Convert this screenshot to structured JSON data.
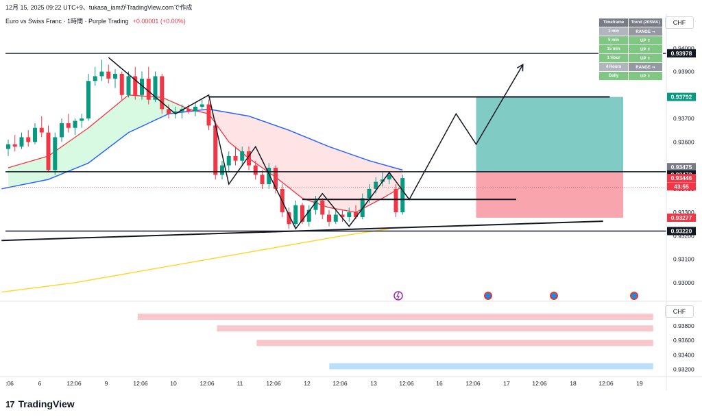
{
  "header": {
    "caption": "12月 15, 2025 09:22 UTC+9、tukasa_iamがTradingView.comで作成",
    "symbol_line": "Euro vs Swiss Franc · 1時間 · Purple Trading",
    "change": "+0.00001 (+0.00%)"
  },
  "axis": {
    "currency": "CHF",
    "currency_lower": "CHF"
  },
  "trend_table": {
    "header": [
      "Timeframe",
      "Trend (20SMA)"
    ],
    "rows": [
      {
        "tf": "1 min",
        "trend": "RANGE ⇒",
        "state": "range"
      },
      {
        "tf": "5 min",
        "trend": "UP ⇑",
        "state": "up"
      },
      {
        "tf": "15 min",
        "trend": "UP ⇑",
        "state": "up"
      },
      {
        "tf": "1 Hour",
        "trend": "UP ⇑",
        "state": "up"
      },
      {
        "tf": "4 Hours",
        "trend": "RANGE ⇒",
        "state": "range"
      },
      {
        "tf": "Daily",
        "trend": "UP ⇑",
        "state": "up"
      }
    ]
  },
  "footer": {
    "brand": "TradingView",
    "logo": "17"
  },
  "chart_data": {
    "type": "line",
    "main_axis": {
      "ylim": [
        0.9295,
        0.9403
      ],
      "ticks": [
        0.94,
        0.939,
        0.938,
        0.937,
        0.936,
        0.935,
        0.934,
        0.933,
        0.932,
        0.931,
        0.93
      ]
    },
    "price_labels": [
      {
        "value": "0.93978",
        "y": 0.93978,
        "style": "dark"
      },
      {
        "value": "0.93792",
        "y": 0.93792,
        "style": "green"
      },
      {
        "value": "0.93475",
        "y": 0.93475,
        "style": "gray"
      },
      {
        "value": "0.93473",
        "y": 0.93473,
        "style": "dark"
      },
      {
        "value": "0.93446",
        "y": 0.93446,
        "style": "red"
      },
      {
        "value": "43:55",
        "y": 0.93422,
        "style": "red"
      },
      {
        "value": "0.93277",
        "y": 0.93277,
        "style": "red"
      },
      {
        "value": "0.93220",
        "y": 0.9322,
        "style": "dark"
      }
    ],
    "x_ticks": [
      ":06",
      "6",
      "12:06",
      "9",
      "12:06",
      "10",
      "12:06",
      "11",
      "12:06",
      "12",
      "12:06",
      "13",
      "12:06",
      "16",
      "12:06",
      "17",
      "12:06",
      "18",
      "12:06",
      "19"
    ],
    "candles": [
      {
        "x": 0,
        "o": 0.9357,
        "h": 0.9361,
        "l": 0.9354,
        "c": 0.9359
      },
      {
        "x": 1,
        "o": 0.9359,
        "h": 0.9363,
        "l": 0.9356,
        "c": 0.9358
      },
      {
        "x": 2,
        "o": 0.9358,
        "h": 0.9364,
        "l": 0.9357,
        "c": 0.9362
      },
      {
        "x": 3,
        "o": 0.9362,
        "h": 0.9365,
        "l": 0.9358,
        "c": 0.936
      },
      {
        "x": 4,
        "o": 0.936,
        "h": 0.9368,
        "l": 0.9359,
        "c": 0.9366
      },
      {
        "x": 5,
        "o": 0.9366,
        "h": 0.9371,
        "l": 0.9362,
        "c": 0.9364
      },
      {
        "x": 6,
        "o": 0.9364,
        "h": 0.9367,
        "l": 0.9347,
        "c": 0.9348
      },
      {
        "x": 7,
        "o": 0.9348,
        "h": 0.9364,
        "l": 0.9346,
        "c": 0.9362
      },
      {
        "x": 8,
        "o": 0.9362,
        "h": 0.937,
        "l": 0.936,
        "c": 0.9368
      },
      {
        "x": 9,
        "o": 0.9368,
        "h": 0.9372,
        "l": 0.9364,
        "c": 0.9366
      },
      {
        "x": 10,
        "o": 0.9366,
        "h": 0.937,
        "l": 0.9363,
        "c": 0.9369
      },
      {
        "x": 11,
        "o": 0.9369,
        "h": 0.9372,
        "l": 0.9366,
        "c": 0.937
      },
      {
        "x": 12,
        "o": 0.937,
        "h": 0.9389,
        "l": 0.9369,
        "c": 0.9386
      },
      {
        "x": 13,
        "o": 0.9386,
        "h": 0.9392,
        "l": 0.9384,
        "c": 0.9388
      },
      {
        "x": 14,
        "o": 0.9388,
        "h": 0.9395,
        "l": 0.9386,
        "c": 0.939
      },
      {
        "x": 15,
        "o": 0.939,
        "h": 0.9393,
        "l": 0.9385,
        "c": 0.9387
      },
      {
        "x": 16,
        "o": 0.9387,
        "h": 0.9391,
        "l": 0.9383,
        "c": 0.9389
      },
      {
        "x": 17,
        "o": 0.9389,
        "h": 0.939,
        "l": 0.9378,
        "c": 0.938
      },
      {
        "x": 18,
        "o": 0.938,
        "h": 0.939,
        "l": 0.9379,
        "c": 0.9388
      },
      {
        "x": 19,
        "o": 0.9388,
        "h": 0.9392,
        "l": 0.9378,
        "c": 0.938
      },
      {
        "x": 20,
        "o": 0.938,
        "h": 0.939,
        "l": 0.9378,
        "c": 0.9387
      },
      {
        "x": 21,
        "o": 0.9387,
        "h": 0.9392,
        "l": 0.9376,
        "c": 0.9378
      },
      {
        "x": 22,
        "o": 0.9378,
        "h": 0.939,
        "l": 0.9377,
        "c": 0.9388
      },
      {
        "x": 23,
        "o": 0.9388,
        "h": 0.9389,
        "l": 0.9372,
        "c": 0.9374
      },
      {
        "x": 24,
        "o": 0.9374,
        "h": 0.9376,
        "l": 0.937,
        "c": 0.9372
      },
      {
        "x": 25,
        "o": 0.9372,
        "h": 0.9375,
        "l": 0.937,
        "c": 0.9373
      },
      {
        "x": 26,
        "o": 0.9373,
        "h": 0.9376,
        "l": 0.937,
        "c": 0.9374
      },
      {
        "x": 27,
        "o": 0.9374,
        "h": 0.9376,
        "l": 0.9372,
        "c": 0.9373
      },
      {
        "x": 28,
        "o": 0.9373,
        "h": 0.9377,
        "l": 0.9371,
        "c": 0.9375
      },
      {
        "x": 29,
        "o": 0.9375,
        "h": 0.9378,
        "l": 0.9374,
        "c": 0.9376
      },
      {
        "x": 30,
        "o": 0.9376,
        "h": 0.9378,
        "l": 0.9365,
        "c": 0.9367
      },
      {
        "x": 31,
        "o": 0.9367,
        "h": 0.9369,
        "l": 0.9344,
        "c": 0.9346
      },
      {
        "x": 32,
        "o": 0.9346,
        "h": 0.9352,
        "l": 0.9344,
        "c": 0.935
      },
      {
        "x": 33,
        "o": 0.935,
        "h": 0.9356,
        "l": 0.9347,
        "c": 0.9354
      },
      {
        "x": 34,
        "o": 0.9354,
        "h": 0.9358,
        "l": 0.935,
        "c": 0.9352
      },
      {
        "x": 35,
        "o": 0.9352,
        "h": 0.9358,
        "l": 0.935,
        "c": 0.9356
      },
      {
        "x": 36,
        "o": 0.9356,
        "h": 0.9358,
        "l": 0.9348,
        "c": 0.935
      },
      {
        "x": 37,
        "o": 0.935,
        "h": 0.9352,
        "l": 0.9344,
        "c": 0.9346
      },
      {
        "x": 38,
        "o": 0.9346,
        "h": 0.9348,
        "l": 0.934,
        "c": 0.9342
      },
      {
        "x": 39,
        "o": 0.9342,
        "h": 0.9351,
        "l": 0.934,
        "c": 0.9349
      },
      {
        "x": 40,
        "o": 0.9349,
        "h": 0.935,
        "l": 0.9338,
        "c": 0.934
      },
      {
        "x": 41,
        "o": 0.934,
        "h": 0.9342,
        "l": 0.9328,
        "c": 0.933
      },
      {
        "x": 42,
        "o": 0.933,
        "h": 0.9332,
        "l": 0.9323,
        "c": 0.9325
      },
      {
        "x": 43,
        "o": 0.9325,
        "h": 0.9335,
        "l": 0.9324,
        "c": 0.9333
      },
      {
        "x": 44,
        "o": 0.9333,
        "h": 0.9334,
        "l": 0.9325,
        "c": 0.9326
      },
      {
        "x": 45,
        "o": 0.9326,
        "h": 0.9333,
        "l": 0.9324,
        "c": 0.9331
      },
      {
        "x": 46,
        "o": 0.9331,
        "h": 0.9337,
        "l": 0.9329,
        "c": 0.9335
      },
      {
        "x": 47,
        "o": 0.9335,
        "h": 0.9336,
        "l": 0.9327,
        "c": 0.9329
      },
      {
        "x": 48,
        "o": 0.9329,
        "h": 0.9331,
        "l": 0.9324,
        "c": 0.9326
      },
      {
        "x": 49,
        "o": 0.9326,
        "h": 0.9331,
        "l": 0.9325,
        "c": 0.9329
      },
      {
        "x": 50,
        "o": 0.9329,
        "h": 0.9331,
        "l": 0.9326,
        "c": 0.9328
      },
      {
        "x": 51,
        "o": 0.9328,
        "h": 0.9332,
        "l": 0.9326,
        "c": 0.933
      },
      {
        "x": 52,
        "o": 0.933,
        "h": 0.9333,
        "l": 0.9327,
        "c": 0.9328
      },
      {
        "x": 53,
        "o": 0.9328,
        "h": 0.9338,
        "l": 0.9327,
        "c": 0.9336
      },
      {
        "x": 54,
        "o": 0.9336,
        "h": 0.9342,
        "l": 0.9334,
        "c": 0.934
      },
      {
        "x": 55,
        "o": 0.934,
        "h": 0.9345,
        "l": 0.9338,
        "c": 0.9343
      },
      {
        "x": 56,
        "o": 0.9343,
        "h": 0.9347,
        "l": 0.9341,
        "c": 0.9344
      },
      {
        "x": 57,
        "o": 0.9344,
        "h": 0.9347,
        "l": 0.9342,
        "c": 0.9346
      },
      {
        "x": 58,
        "o": 0.934,
        "h": 0.9342,
        "l": 0.9328,
        "c": 0.933
      },
      {
        "x": 59,
        "o": 0.933,
        "h": 0.9346,
        "l": 0.9329,
        "c": 0.93446
      }
    ],
    "series": [
      {
        "type": "line",
        "color": "#f23645",
        "values": [
          [
            0,
            0.9349
          ],
          [
            6,
            0.9354
          ],
          [
            12,
            0.9366
          ],
          [
            18,
            0.938
          ],
          [
            23,
            0.9379
          ],
          [
            27,
            0.9374
          ],
          [
            30,
            0.9372
          ],
          [
            33,
            0.936
          ],
          [
            36,
            0.9353
          ],
          [
            40,
            0.9345
          ],
          [
            44,
            0.9336
          ],
          [
            48,
            0.9332
          ],
          [
            52,
            0.933
          ],
          [
            56,
            0.9336
          ],
          [
            59,
            0.9341
          ]
        ]
      },
      {
        "type": "line",
        "color": "#2962ff",
        "values": [
          [
            -1,
            0.934
          ],
          [
            6,
            0.9344
          ],
          [
            12,
            0.9351
          ],
          [
            18,
            0.9364
          ],
          [
            24,
            0.9372
          ],
          [
            30,
            0.9374
          ],
          [
            36,
            0.9371
          ],
          [
            42,
            0.9365
          ],
          [
            48,
            0.9358
          ],
          [
            54,
            0.9352
          ],
          [
            59,
            0.9348
          ]
        ]
      },
      {
        "type": "line",
        "color": "#fdd835",
        "values": [
          [
            -1,
            0.9296
          ],
          [
            10,
            0.93
          ],
          [
            20,
            0.9305
          ],
          [
            30,
            0.931
          ],
          [
            40,
            0.9315
          ],
          [
            50,
            0.932
          ],
          [
            57,
            0.9323
          ]
        ]
      }
    ],
    "lines": [
      {
        "kind": "hline",
        "y": 0.93978
      },
      {
        "kind": "hline",
        "y": 0.93473
      },
      {
        "kind": "hline",
        "y": 0.9322
      },
      {
        "kind": "segment",
        "points": [
          [
            30,
            0.93792
          ],
          [
            90,
            0.93792
          ]
        ]
      },
      {
        "kind": "segment",
        "points": [
          [
            44,
            0.93355
          ],
          [
            76,
            0.93355
          ]
        ]
      },
      {
        "kind": "segment",
        "points": [
          [
            -1,
            0.9318
          ],
          [
            89,
            0.93262
          ]
        ]
      },
      {
        "kind": "zigzag",
        "points": [
          [
            15,
            0.9396
          ],
          [
            25,
            0.9372
          ],
          [
            30,
            0.938
          ],
          [
            33,
            0.9342
          ],
          [
            37,
            0.9358
          ],
          [
            43,
            0.9323
          ],
          [
            47,
            0.9338
          ],
          [
            51,
            0.9324
          ],
          [
            57,
            0.9347
          ],
          [
            60,
            0.93355
          ],
          [
            67,
            0.9372
          ],
          [
            70,
            0.9359
          ],
          [
            77,
            0.9393
          ]
        ]
      }
    ],
    "zones": [
      {
        "kind": "target",
        "x": [
          70,
          92
        ],
        "y": [
          0.93473,
          0.93792
        ],
        "color": "#80cbc4"
      },
      {
        "kind": "stop",
        "x": [
          70,
          92
        ],
        "y": [
          0.93277,
          0.93473
        ],
        "color": "#f8a5ad"
      }
    ],
    "lower_panel": {
      "ticks": [
        0.938,
        0.936,
        0.934,
        0.932
      ],
      "bars": [
        {
          "x": [
            20,
            98
          ],
          "y": 0.9392,
          "color": "#f8c7cc"
        },
        {
          "x": [
            32,
            98
          ],
          "y": 0.9376,
          "color": "#f8c7cc"
        },
        {
          "x": [
            38,
            98
          ],
          "y": 0.9356,
          "color": "#f8c7cc"
        },
        {
          "x": [
            49,
            98
          ],
          "y": 0.9324,
          "color": "#bbdefb"
        }
      ]
    },
    "markers": [
      "lightning-icon",
      "event-icon",
      "event-icon",
      "event-icon"
    ]
  }
}
